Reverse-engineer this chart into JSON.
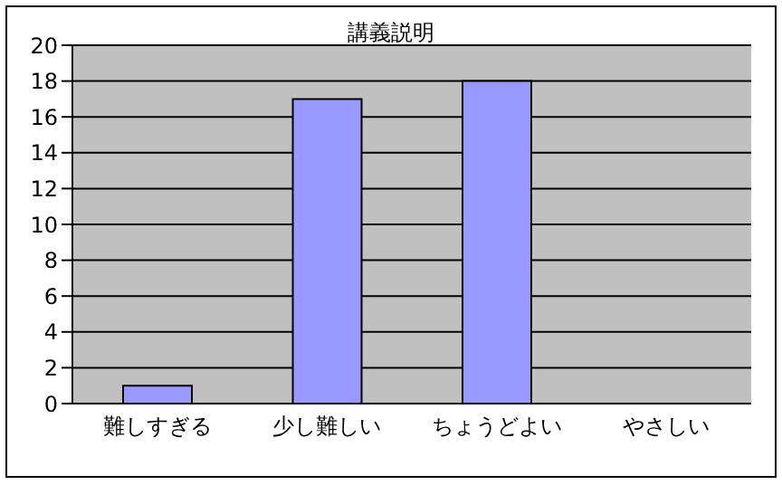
{
  "chart_data": {
    "type": "bar",
    "title": "講義説明",
    "categories": [
      "難しすぎる",
      "少し難しい",
      "ちょうどよい",
      "やさしい"
    ],
    "values": [
      1,
      17,
      18,
      0
    ],
    "color": "#9999ff",
    "ylim": [
      0,
      20
    ],
    "yticks": [
      0,
      2,
      4,
      6,
      8,
      10,
      12,
      14,
      16,
      18,
      20
    ],
    "grid": "y"
  }
}
